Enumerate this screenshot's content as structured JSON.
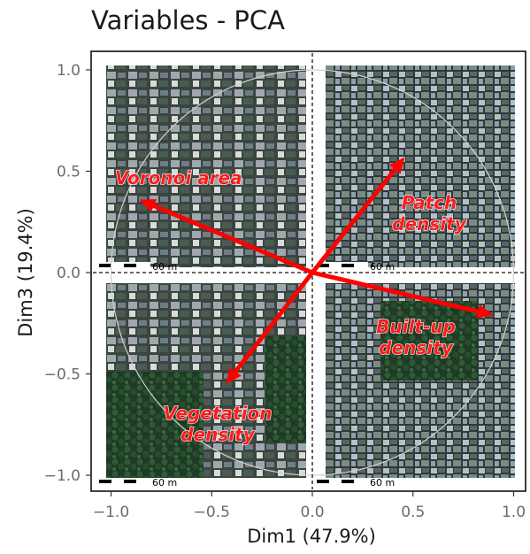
{
  "chart_data": {
    "type": "pca-variables",
    "title": "Variables - PCA",
    "xlabel": "Dim1 (47.9%)",
    "ylabel": "Dim3 (19.4%)",
    "xlim": [
      -1.0,
      1.0
    ],
    "ylim": [
      -1.0,
      1.0
    ],
    "x_ticks": [
      -1.0,
      -0.5,
      0.0,
      0.5,
      1.0
    ],
    "y_ticks": [
      -1.0,
      -0.5,
      0.0,
      0.5,
      1.0
    ],
    "x_tick_labels": [
      "−1.0",
      "−0.5",
      "0.0",
      "0.5",
      "1.0"
    ],
    "y_tick_labels": [
      "−1.0",
      "−0.5",
      "0.0",
      "0.5",
      "1.0"
    ],
    "grid": false,
    "correlation_circle": true,
    "vectors": [
      {
        "name": "Voronoi area",
        "x": -0.86,
        "y": 0.36
      },
      {
        "name": "Patch density",
        "x": 0.46,
        "y": 0.57
      },
      {
        "name": "Built-up density",
        "x": 0.9,
        "y": -0.21
      },
      {
        "name": "Vegetation density",
        "x": -0.43,
        "y": -0.55
      }
    ],
    "vector_label_lines": [
      [
        "Voronoi area"
      ],
      [
        "Patch",
        "density"
      ],
      [
        "Built-up",
        "density"
      ],
      [
        "Vegetation",
        "density"
      ]
    ],
    "vector_color": "#ff0000",
    "label_color": "#ff1a1a",
    "background_images": [
      {
        "quadrant": "top-left",
        "content": "aerial imagery",
        "scale_label": "60 m"
      },
      {
        "quadrant": "top-right",
        "content": "aerial imagery",
        "scale_label": "60 m"
      },
      {
        "quadrant": "bottom-left",
        "content": "aerial imagery",
        "scale_label": "60 m"
      },
      {
        "quadrant": "bottom-right",
        "content": "aerial imagery",
        "scale_label": "60 m"
      }
    ]
  }
}
